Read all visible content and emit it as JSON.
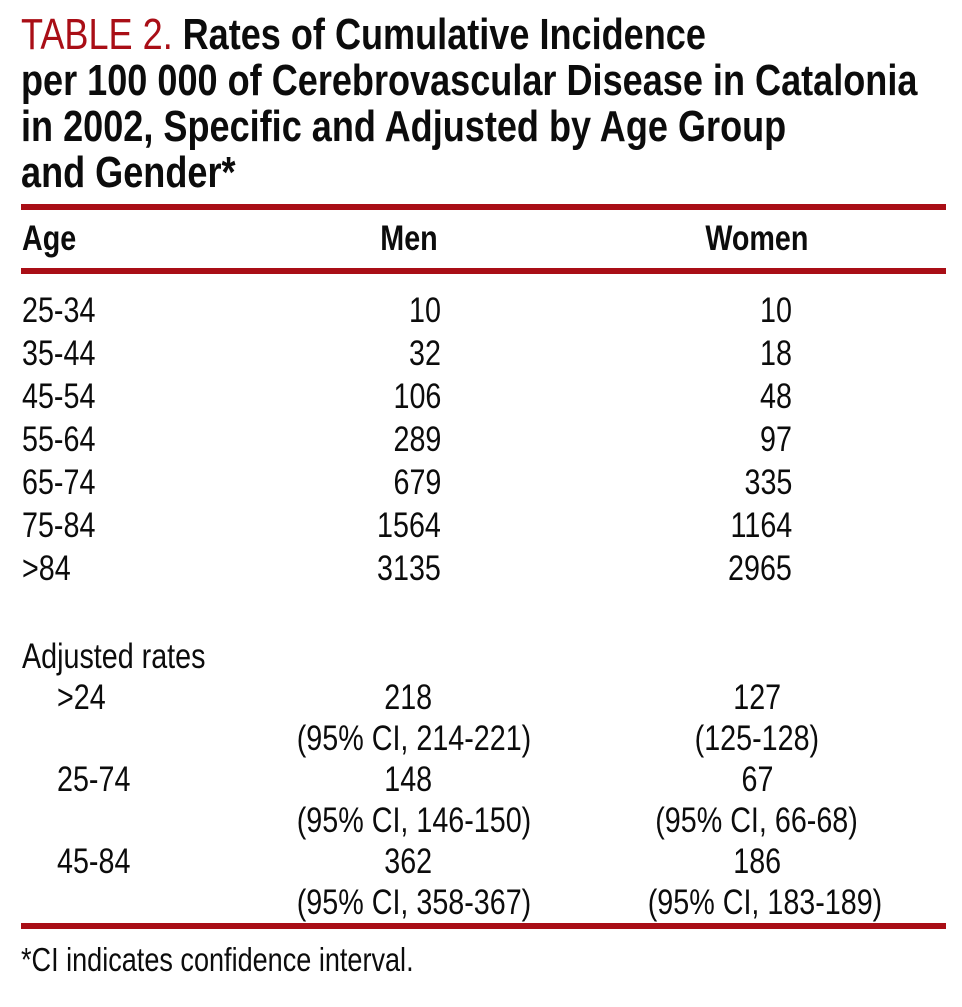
{
  "accent_color": "#a90e16",
  "title": {
    "label": "TABLE 2.",
    "line1_rest": "Rates of Cumulative Incidence",
    "line2": "per 100 000 of Cerebrovascular Disease in Catalonia",
    "line3": "in 2002, Specific and Adjusted by Age Group",
    "line4": "and Gender*"
  },
  "columns": {
    "age": "Age",
    "men": "Men",
    "women": "Women"
  },
  "age_specific_rows": [
    {
      "age": "25-34",
      "men": "10",
      "women": "10"
    },
    {
      "age": "35-44",
      "men": "32",
      "women": "18"
    },
    {
      "age": "45-54",
      "men": "106",
      "women": "48"
    },
    {
      "age": "55-64",
      "men": "289",
      "women": "97"
    },
    {
      "age": "65-74",
      "men": "679",
      "women": "335"
    },
    {
      "age": "75-84",
      "men": "1564",
      "women": "1164"
    },
    {
      "age": ">84",
      "men": "3135",
      "women": "2965"
    }
  ],
  "adjusted": {
    "section_label": "Adjusted rates",
    "rows": [
      {
        "age": ">24",
        "men_value": "218",
        "men_ci": "(95% CI, 214-221)",
        "women_value": "127",
        "women_ci": "(125-128)"
      },
      {
        "age": "25-74",
        "men_value": "148",
        "men_ci": "(95% CI, 146-150)",
        "women_value": "67",
        "women_ci": "(95% CI, 66-68)"
      },
      {
        "age": "45-84",
        "men_value": "362",
        "men_ci": "(95% CI, 358-367)",
        "women_value": "186",
        "women_ci": "(95% CI, 183-189)"
      }
    ]
  },
  "footnote": "*CI indicates confidence interval."
}
